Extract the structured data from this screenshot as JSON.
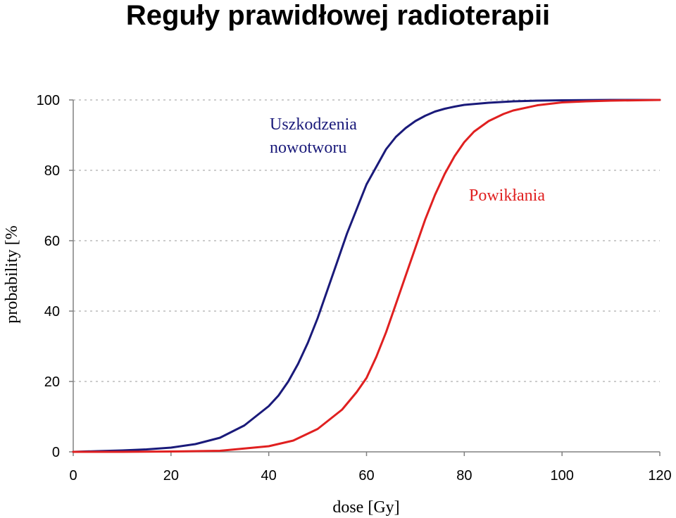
{
  "title": "Reguły prawidłowej radioterapii",
  "chart_data": {
    "type": "line",
    "title": "Reguły prawidłowej radioterapii",
    "xlabel": "dose [Gy]",
    "ylabel": "probability [%",
    "xlim": [
      0,
      120
    ],
    "ylim": [
      0,
      100
    ],
    "xticks": [
      0,
      20,
      40,
      60,
      80,
      100,
      120
    ],
    "yticks": [
      0,
      20,
      40,
      60,
      80,
      100
    ],
    "grid": "horizontal dashed",
    "series": [
      {
        "name": "Uszkodzenia nowotworu",
        "color": "#1a1a7a",
        "x": [
          0,
          5,
          10,
          15,
          20,
          25,
          30,
          35,
          40,
          42,
          44,
          46,
          48,
          50,
          52,
          54,
          56,
          58,
          60,
          62,
          64,
          66,
          68,
          70,
          72,
          74,
          76,
          78,
          80,
          85,
          90,
          95,
          100,
          110,
          120
        ],
        "y": [
          0,
          0.2,
          0.4,
          0.7,
          1.2,
          2.2,
          4,
          7.5,
          13,
          16,
          20,
          25,
          31,
          38,
          46,
          54,
          62,
          69,
          76,
          81,
          86,
          89.5,
          92,
          94,
          95.5,
          96.7,
          97.5,
          98.1,
          98.6,
          99.2,
          99.6,
          99.8,
          99.9,
          100,
          100
        ]
      },
      {
        "name": "Powikłania",
        "color": "#e02020",
        "x": [
          0,
          10,
          20,
          30,
          40,
          45,
          50,
          55,
          58,
          60,
          62,
          64,
          66,
          68,
          70,
          72,
          74,
          76,
          78,
          80,
          82,
          85,
          88,
          90,
          95,
          100,
          105,
          110,
          120
        ],
        "y": [
          0,
          0,
          0.1,
          0.3,
          1.6,
          3.2,
          6.5,
          12,
          17,
          21,
          27,
          34,
          42,
          50,
          58,
          66,
          73,
          79,
          84,
          88,
          91,
          94,
          96,
          97,
          98.5,
          99.3,
          99.6,
          99.8,
          100
        ]
      }
    ],
    "annotations": [
      {
        "lines": [
          "Uszkodzenia",
          "nowotworu"
        ],
        "color": "#1a1a7a",
        "series": 0
      },
      {
        "lines": [
          "Powikłania"
        ],
        "color": "#e02020",
        "series": 1
      }
    ]
  }
}
